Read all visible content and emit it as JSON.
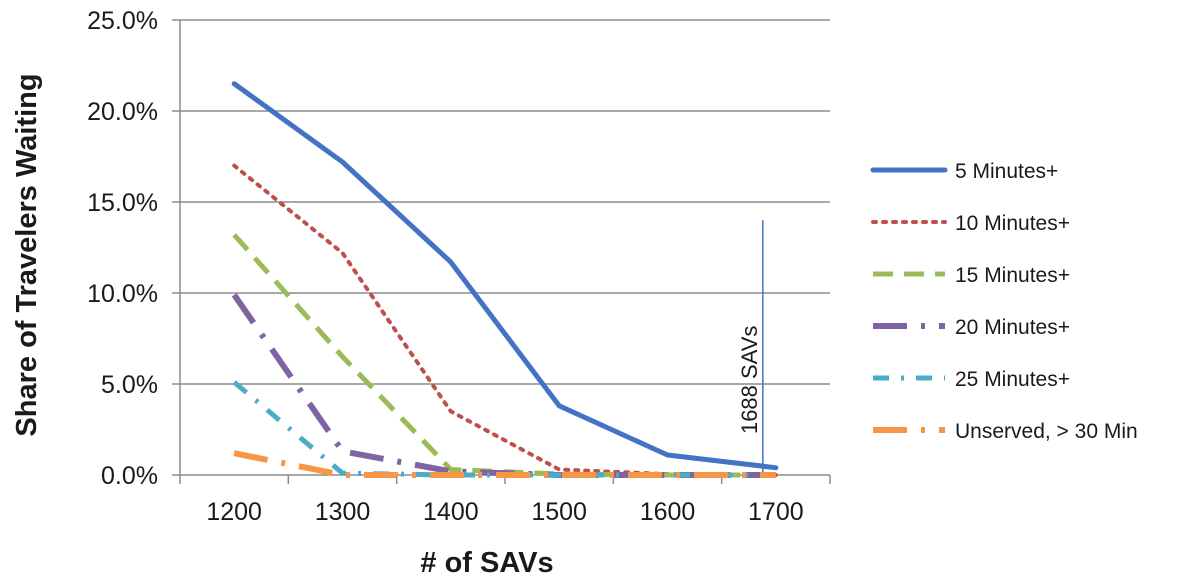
{
  "chart_data": {
    "type": "line",
    "xlabel": "# of SAVs",
    "ylabel": "Share of Travelers Waiting",
    "x": [
      1200,
      1300,
      1400,
      1500,
      1600,
      1700
    ],
    "x_tick_labels": [
      "1200",
      "1300",
      "1400",
      "1500",
      "1600",
      "1700"
    ],
    "y_tick_labels": [
      "0.0%",
      "5.0%",
      "10.0%",
      "15.0%",
      "20.0%",
      "25.0%"
    ],
    "xlim": [
      1150,
      1750
    ],
    "ylim": [
      0,
      25
    ],
    "grid": "horizontal",
    "legend_position": "right",
    "series": [
      {
        "name": "5 Minutes+",
        "values": [
          21.5,
          17.2,
          11.7,
          3.8,
          1.1,
          0.4
        ],
        "color": "#4472c4",
        "style": "solid"
      },
      {
        "name": "10 Minutes+",
        "values": [
          17.0,
          12.2,
          3.5,
          0.3,
          0.05,
          0.0
        ],
        "color": "#c0504d",
        "style": "dotted"
      },
      {
        "name": "15 Minutes+",
        "values": [
          13.2,
          6.5,
          0.3,
          0.05,
          0.0,
          0.0
        ],
        "color": "#9bbb59",
        "style": "dashed"
      },
      {
        "name": "20 Minutes+",
        "values": [
          9.9,
          1.3,
          0.2,
          0.0,
          0.0,
          0.0
        ],
        "color": "#8064a2",
        "style": "long-dash-dot"
      },
      {
        "name": "25 Minutes+",
        "values": [
          5.1,
          0.1,
          0.0,
          0.0,
          0.0,
          0.0
        ],
        "color": "#4bacc6",
        "style": "dash-dot"
      },
      {
        "name": "Unserved, > 30 Min",
        "values": [
          1.2,
          0.0,
          0.0,
          0.0,
          0.0,
          0.0
        ],
        "color": "#f79646",
        "style": "long-dash-dot"
      }
    ],
    "annotations": [
      {
        "text": "1688 SAVs",
        "x": 1688,
        "y_range": [
          0,
          14
        ],
        "color": "#4472c4"
      }
    ]
  }
}
